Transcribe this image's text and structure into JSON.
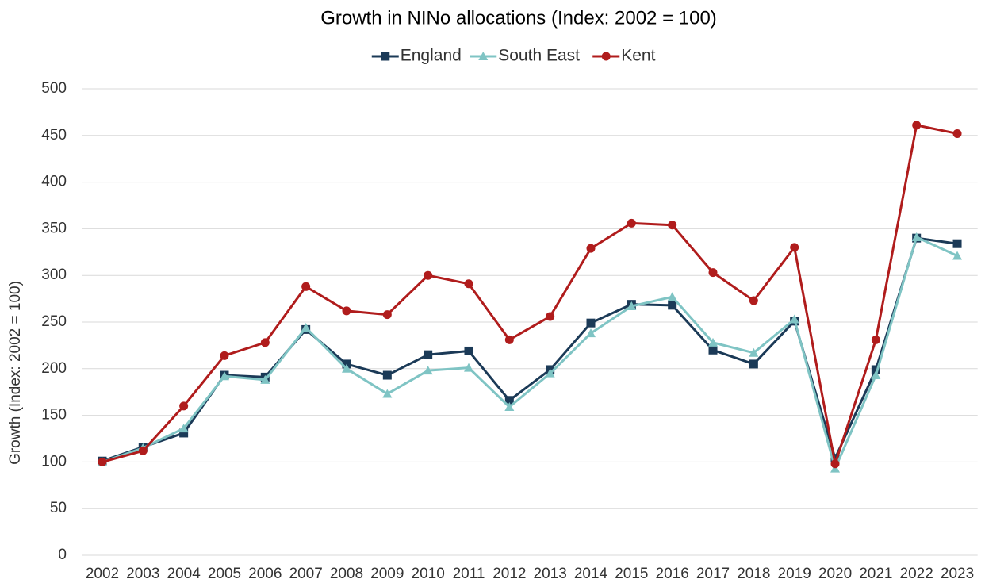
{
  "chart_data": {
    "type": "line",
    "title": "Growth in NINo allocations (Index: 2002 = 100)",
    "y_label": "Growth (Index: 2002 = 100)",
    "categories": [
      "2002",
      "2003",
      "2004",
      "2005",
      "2006",
      "2007",
      "2008",
      "2009",
      "2010",
      "2011",
      "2012",
      "2013",
      "2014",
      "2015",
      "2016",
      "2017",
      "2018",
      "2019",
      "2020",
      "2021",
      "2022",
      "2023"
    ],
    "series": [
      {
        "name": "England",
        "color": "#1b3a57",
        "marker": "square",
        "values": [
          101,
          116,
          131,
          193,
          191,
          242,
          205,
          193,
          215,
          219,
          166,
          199,
          249,
          269,
          268,
          220,
          205,
          251,
          104,
          199,
          340,
          334
        ]
      },
      {
        "name": "South East",
        "color": "#7fc4c4",
        "marker": "triangle",
        "values": [
          100,
          115,
          136,
          192,
          188,
          244,
          200,
          173,
          198,
          201,
          159,
          195,
          238,
          267,
          277,
          228,
          217,
          253,
          93,
          193,
          341,
          321
        ]
      },
      {
        "name": "Kent",
        "color": "#b01c1c",
        "marker": "circle",
        "values": [
          100,
          112,
          160,
          214,
          228,
          288,
          262,
          258,
          300,
          291,
          231,
          256,
          329,
          356,
          354,
          303,
          273,
          330,
          98,
          231,
          461,
          452
        ]
      }
    ],
    "ylim": [
      0,
      500
    ],
    "yticks": [
      0,
      50,
      100,
      150,
      200,
      250,
      300,
      350,
      400,
      450,
      500
    ],
    "grid": true,
    "legend": "top"
  }
}
